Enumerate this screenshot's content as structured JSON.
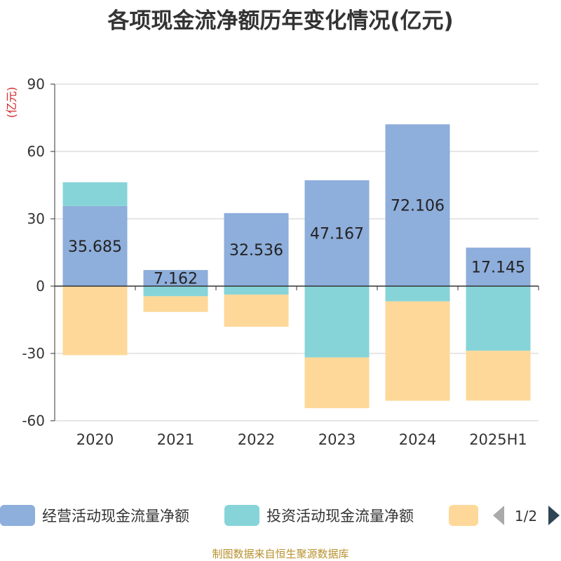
{
  "chart_data": {
    "type": "bar",
    "stacked": true,
    "title": "各项现金流净额历年变化情况(亿元)",
    "ylabel": "(亿元)",
    "categories": [
      "2020",
      "2021",
      "2022",
      "2023",
      "2024",
      "2025H1"
    ],
    "ylim": [
      -60,
      90
    ],
    "yticks": [
      90,
      60,
      30,
      0,
      -30,
      -60
    ],
    "grid": true,
    "series": [
      {
        "name": "经营活动现金流量净额",
        "color": "#8eaedb",
        "values": [
          35.685,
          7.162,
          32.536,
          47.167,
          72.106,
          17.145
        ],
        "labels": [
          "35.685",
          "7.162",
          "32.536",
          "47.167",
          "72.106",
          "17.145"
        ]
      },
      {
        "name": "投资活动现金流量净额",
        "color": "#86d4d8",
        "values": [
          10.6,
          -4.5,
          -3.8,
          -31.8,
          -6.8,
          -28.8
        ]
      },
      {
        "name": "",
        "color": "#fed899",
        "values": [
          -30.8,
          -7.0,
          -14.3,
          -22.6,
          -44.3,
          -22.2
        ]
      }
    ],
    "legend": {
      "position": "bottom",
      "page": "1/2"
    }
  },
  "source_note": "制图数据来自恒生聚源数据库"
}
